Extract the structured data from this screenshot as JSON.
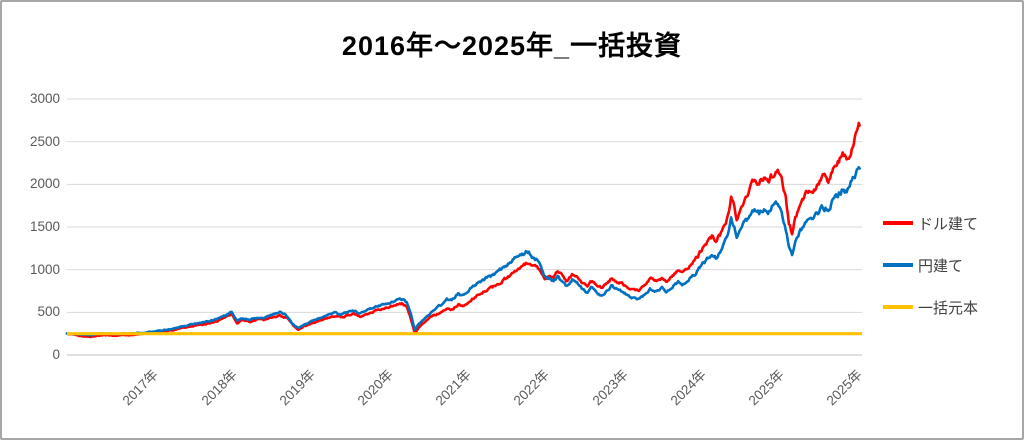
{
  "title": "2016年～2025年_一括投資",
  "legend": {
    "items": [
      {
        "label": "ドル建て",
        "color": "#ff0000"
      },
      {
        "label": "円建て",
        "color": "#0070c0"
      },
      {
        "label": "一括元本",
        "color": "#ffc000"
      }
    ]
  },
  "colors": {
    "grid": "#d9d9d9",
    "axis_line": "#bfbfbf",
    "tick_text": "#595959"
  },
  "chart_data": {
    "type": "line",
    "title": "2016年～2025年_一括投資",
    "xlabel": "",
    "ylabel": "",
    "grid": "horizontal-only",
    "legend_position": "right",
    "x_axis": {
      "range_years": [
        2016.0,
        2025.9
      ],
      "labels": [
        "2017年",
        "2018年",
        "2019年",
        "2020年",
        "2021年",
        "2022年",
        "2023年",
        "2024年",
        "2025年",
        "2025年"
      ]
    },
    "y_axis": {
      "min": 0,
      "max": 3000,
      "step": 500,
      "ticks": [
        0,
        500,
        1000,
        1500,
        2000,
        2500,
        3000
      ]
    },
    "principal": {
      "name": "一括元本",
      "value": 250,
      "color": "#ffc000"
    },
    "series": [
      {
        "name": "ドル建て",
        "color": "#ff0000",
        "points": [
          [
            2016.0,
            250
          ],
          [
            2016.09,
            238
          ],
          [
            2016.19,
            220
          ],
          [
            2016.29,
            212
          ],
          [
            2016.37,
            226
          ],
          [
            2016.5,
            235
          ],
          [
            2016.59,
            226
          ],
          [
            2016.68,
            237
          ],
          [
            2016.78,
            228
          ],
          [
            2016.87,
            243
          ],
          [
            2017.0,
            255
          ],
          [
            2017.12,
            270
          ],
          [
            2017.25,
            283
          ],
          [
            2017.37,
            300
          ],
          [
            2017.49,
            325
          ],
          [
            2017.62,
            345
          ],
          [
            2017.74,
            365
          ],
          [
            2017.87,
            395
          ],
          [
            2017.99,
            450
          ],
          [
            2018.05,
            478
          ],
          [
            2018.12,
            372
          ],
          [
            2018.18,
            408
          ],
          [
            2018.28,
            392
          ],
          [
            2018.37,
            420
          ],
          [
            2018.45,
            412
          ],
          [
            2018.55,
            440
          ],
          [
            2018.65,
            465
          ],
          [
            2018.74,
            430
          ],
          [
            2018.8,
            360
          ],
          [
            2018.88,
            295
          ],
          [
            2018.95,
            335
          ],
          [
            2019.05,
            372
          ],
          [
            2019.15,
            405
          ],
          [
            2019.25,
            435
          ],
          [
            2019.35,
            455
          ],
          [
            2019.42,
            442
          ],
          [
            2019.5,
            468
          ],
          [
            2019.57,
            480
          ],
          [
            2019.65,
            455
          ],
          [
            2019.74,
            485
          ],
          [
            2019.82,
            510
          ],
          [
            2019.92,
            540
          ],
          [
            2020.02,
            565
          ],
          [
            2020.11,
            590
          ],
          [
            2020.18,
            600
          ],
          [
            2020.23,
            565
          ],
          [
            2020.28,
            430
          ],
          [
            2020.33,
            255
          ],
          [
            2020.38,
            320
          ],
          [
            2020.42,
            355
          ],
          [
            2020.47,
            400
          ],
          [
            2020.52,
            435
          ],
          [
            2020.57,
            460
          ],
          [
            2020.62,
            485
          ],
          [
            2020.67,
            505
          ],
          [
            2020.73,
            545
          ],
          [
            2020.79,
            530
          ],
          [
            2020.87,
            590
          ],
          [
            2020.94,
            570
          ],
          [
            2021.02,
            640
          ],
          [
            2021.09,
            690
          ],
          [
            2021.17,
            730
          ],
          [
            2021.24,
            765
          ],
          [
            2021.32,
            800
          ],
          [
            2021.39,
            850
          ],
          [
            2021.47,
            900
          ],
          [
            2021.54,
            950
          ],
          [
            2021.62,
            1010
          ],
          [
            2021.69,
            1060
          ],
          [
            2021.74,
            1085
          ],
          [
            2021.79,
            1050
          ],
          [
            2021.84,
            1035
          ],
          [
            2021.89,
            985
          ],
          [
            2021.95,
            905
          ],
          [
            2022.0,
            935
          ],
          [
            2022.06,
            910
          ],
          [
            2022.11,
            975
          ],
          [
            2022.16,
            935
          ],
          [
            2022.23,
            870
          ],
          [
            2022.29,
            950
          ],
          [
            2022.35,
            920
          ],
          [
            2022.41,
            860
          ],
          [
            2022.48,
            810
          ],
          [
            2022.54,
            870
          ],
          [
            2022.6,
            820
          ],
          [
            2022.66,
            780
          ],
          [
            2022.72,
            840
          ],
          [
            2022.79,
            905
          ],
          [
            2022.85,
            860
          ],
          [
            2022.91,
            850
          ],
          [
            2022.97,
            800
          ],
          [
            2023.03,
            770
          ],
          [
            2023.11,
            750
          ],
          [
            2023.19,
            820
          ],
          [
            2023.26,
            900
          ],
          [
            2023.33,
            865
          ],
          [
            2023.41,
            905
          ],
          [
            2023.46,
            865
          ],
          [
            2023.53,
            925
          ],
          [
            2023.61,
            985
          ],
          [
            2023.66,
            955
          ],
          [
            2023.73,
            1020
          ],
          [
            2023.81,
            1090
          ],
          [
            2023.88,
            1190
          ],
          [
            2023.96,
            1290
          ],
          [
            2024.03,
            1390
          ],
          [
            2024.08,
            1330
          ],
          [
            2024.13,
            1410
          ],
          [
            2024.18,
            1500
          ],
          [
            2024.23,
            1630
          ],
          [
            2024.27,
            1860
          ],
          [
            2024.31,
            1750
          ],
          [
            2024.34,
            1580
          ],
          [
            2024.39,
            1700
          ],
          [
            2024.43,
            1810
          ],
          [
            2024.51,
            1980
          ],
          [
            2024.56,
            2050
          ],
          [
            2024.62,
            2010
          ],
          [
            2024.68,
            2090
          ],
          [
            2024.73,
            2040
          ],
          [
            2024.79,
            2110
          ],
          [
            2024.85,
            2140
          ],
          [
            2024.9,
            2030
          ],
          [
            2024.95,
            1830
          ],
          [
            2024.99,
            1560
          ],
          [
            2025.03,
            1430
          ],
          [
            2025.07,
            1620
          ],
          [
            2025.12,
            1750
          ],
          [
            2025.18,
            1850
          ],
          [
            2025.24,
            1940
          ],
          [
            2025.29,
            1900
          ],
          [
            2025.35,
            2000
          ],
          [
            2025.41,
            2080
          ],
          [
            2025.48,
            2050
          ],
          [
            2025.54,
            2150
          ],
          [
            2025.6,
            2250
          ],
          [
            2025.66,
            2330
          ],
          [
            2025.71,
            2290
          ],
          [
            2025.76,
            2400
          ],
          [
            2025.81,
            2530
          ],
          [
            2025.85,
            2640
          ],
          [
            2025.87,
            2690
          ]
        ]
      },
      {
        "name": "円建て",
        "color": "#0070c0",
        "points": [
          [
            2016.0,
            250
          ],
          [
            2016.09,
            247
          ],
          [
            2016.19,
            238
          ],
          [
            2016.29,
            235
          ],
          [
            2016.37,
            245
          ],
          [
            2016.5,
            252
          ],
          [
            2016.59,
            244
          ],
          [
            2016.68,
            252
          ],
          [
            2016.78,
            246
          ],
          [
            2016.87,
            255
          ],
          [
            2017.0,
            263
          ],
          [
            2017.12,
            280
          ],
          [
            2017.25,
            296
          ],
          [
            2017.37,
            318
          ],
          [
            2017.49,
            348
          ],
          [
            2017.62,
            368
          ],
          [
            2017.74,
            390
          ],
          [
            2017.87,
            420
          ],
          [
            2017.99,
            475
          ],
          [
            2018.05,
            500
          ],
          [
            2018.12,
            398
          ],
          [
            2018.18,
            432
          ],
          [
            2018.28,
            415
          ],
          [
            2018.37,
            445
          ],
          [
            2018.45,
            432
          ],
          [
            2018.55,
            470
          ],
          [
            2018.65,
            500
          ],
          [
            2018.74,
            460
          ],
          [
            2018.8,
            378
          ],
          [
            2018.88,
            312
          ],
          [
            2018.95,
            355
          ],
          [
            2019.05,
            395
          ],
          [
            2019.15,
            432
          ],
          [
            2019.25,
            468
          ],
          [
            2019.35,
            492
          ],
          [
            2019.42,
            478
          ],
          [
            2019.5,
            505
          ],
          [
            2019.57,
            522
          ],
          [
            2019.65,
            492
          ],
          [
            2019.74,
            525
          ],
          [
            2019.82,
            555
          ],
          [
            2019.92,
            590
          ],
          [
            2020.02,
            618
          ],
          [
            2020.11,
            645
          ],
          [
            2020.18,
            655
          ],
          [
            2020.23,
            615
          ],
          [
            2020.28,
            475
          ],
          [
            2020.33,
            292
          ],
          [
            2020.38,
            360
          ],
          [
            2020.42,
            400
          ],
          [
            2020.47,
            450
          ],
          [
            2020.52,
            490
          ],
          [
            2020.57,
            525
          ],
          [
            2020.62,
            560
          ],
          [
            2020.67,
            595
          ],
          [
            2020.73,
            650
          ],
          [
            2020.79,
            635
          ],
          [
            2020.87,
            715
          ],
          [
            2020.94,
            695
          ],
          [
            2021.02,
            780
          ],
          [
            2021.09,
            830
          ],
          [
            2021.17,
            875
          ],
          [
            2021.24,
            910
          ],
          [
            2021.32,
            950
          ],
          [
            2021.39,
            1000
          ],
          [
            2021.47,
            1055
          ],
          [
            2021.54,
            1110
          ],
          [
            2021.62,
            1160
          ],
          [
            2021.69,
            1195
          ],
          [
            2021.74,
            1215
          ],
          [
            2021.79,
            1160
          ],
          [
            2021.84,
            1120
          ],
          [
            2021.89,
            1045
          ],
          [
            2021.95,
            915
          ],
          [
            2022.0,
            900
          ],
          [
            2022.06,
            860
          ],
          [
            2022.11,
            915
          ],
          [
            2022.16,
            862
          ],
          [
            2022.23,
            800
          ],
          [
            2022.29,
            880
          ],
          [
            2022.35,
            850
          ],
          [
            2022.41,
            782
          ],
          [
            2022.48,
            732
          ],
          [
            2022.54,
            790
          ],
          [
            2022.6,
            732
          ],
          [
            2022.66,
            692
          ],
          [
            2022.72,
            750
          ],
          [
            2022.79,
            812
          ],
          [
            2022.85,
            770
          ],
          [
            2022.91,
            755
          ],
          [
            2022.97,
            700
          ],
          [
            2023.03,
            672
          ],
          [
            2023.11,
            645
          ],
          [
            2023.19,
            702
          ],
          [
            2023.26,
            778
          ],
          [
            2023.33,
            742
          ],
          [
            2023.41,
            790
          ],
          [
            2023.46,
            748
          ],
          [
            2023.53,
            800
          ],
          [
            2023.61,
            858
          ],
          [
            2023.66,
            828
          ],
          [
            2023.73,
            880
          ],
          [
            2023.81,
            940
          ],
          [
            2023.88,
            1025
          ],
          [
            2023.96,
            1105
          ],
          [
            2024.03,
            1185
          ],
          [
            2024.08,
            1135
          ],
          [
            2024.13,
            1205
          ],
          [
            2024.18,
            1285
          ],
          [
            2024.23,
            1400
          ],
          [
            2024.27,
            1590
          ],
          [
            2024.31,
            1500
          ],
          [
            2024.34,
            1355
          ],
          [
            2024.39,
            1450
          ],
          [
            2024.43,
            1530
          ],
          [
            2024.51,
            1640
          ],
          [
            2024.56,
            1690
          ],
          [
            2024.62,
            1660
          ],
          [
            2024.68,
            1720
          ],
          [
            2024.73,
            1685
          ],
          [
            2024.79,
            1745
          ],
          [
            2024.85,
            1775
          ],
          [
            2024.9,
            1650
          ],
          [
            2024.95,
            1455
          ],
          [
            2024.99,
            1265
          ],
          [
            2025.03,
            1170
          ],
          [
            2025.07,
            1330
          ],
          [
            2025.12,
            1440
          ],
          [
            2025.18,
            1530
          ],
          [
            2025.24,
            1610
          ],
          [
            2025.29,
            1580
          ],
          [
            2025.35,
            1665
          ],
          [
            2025.41,
            1740
          ],
          [
            2025.48,
            1715
          ],
          [
            2025.54,
            1800
          ],
          [
            2025.6,
            1875
          ],
          [
            2025.66,
            1945
          ],
          [
            2025.71,
            1915
          ],
          [
            2025.76,
            2010
          ],
          [
            2025.81,
            2095
          ],
          [
            2025.85,
            2160
          ],
          [
            2025.87,
            2185
          ]
        ]
      }
    ]
  }
}
